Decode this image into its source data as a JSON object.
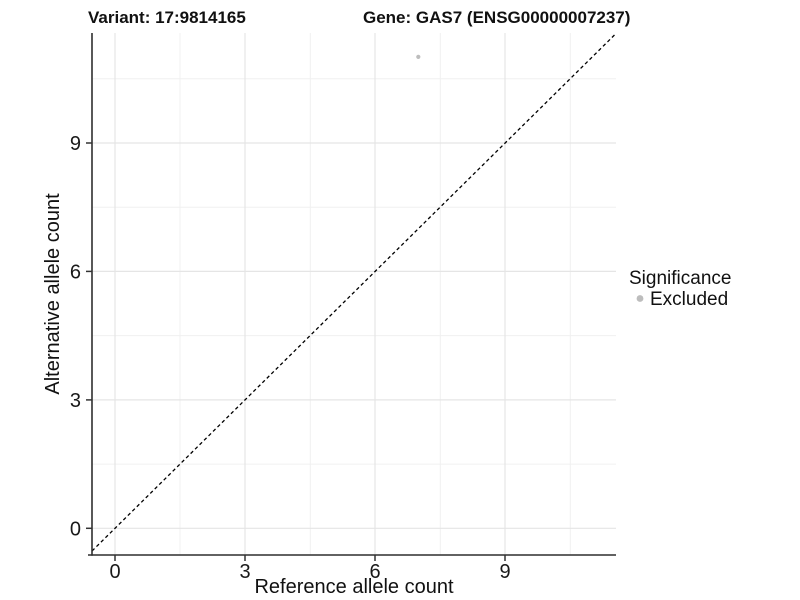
{
  "chart_data": {
    "type": "scatter",
    "title_left": "Variant: 17:9814165",
    "title_right": "Gene: GAS7 (ENSG00000007237)",
    "xlabel": "Reference allele count",
    "ylabel": "Alternative allele count",
    "x_ticks": [
      "0",
      "3",
      "6",
      "9"
    ],
    "y_ticks": [
      "0",
      "3",
      "6",
      "9"
    ],
    "xlim": [
      -0.55,
      11.55
    ],
    "ylim": [
      -0.6,
      11.6
    ],
    "grid": {
      "major": true,
      "minor": true
    },
    "points": [
      {
        "x": 7,
        "y": 11,
        "series": "Excluded"
      }
    ],
    "identity_line": {
      "slope": 1,
      "intercept": 0,
      "style": "dashed",
      "color": "#000000"
    },
    "legend": {
      "title": "Significance",
      "position": "right",
      "entries": [
        {
          "label": "Excluded",
          "color": "#bdbdbd",
          "marker": "circle"
        }
      ]
    }
  },
  "colors": {
    "background": "#ffffff",
    "grid_major": "#e5e5e5",
    "grid_minor": "#f0f0f0",
    "axis_line": "#2f2f2f",
    "point": "#bdbdbd",
    "dashed_line": "#000000"
  }
}
